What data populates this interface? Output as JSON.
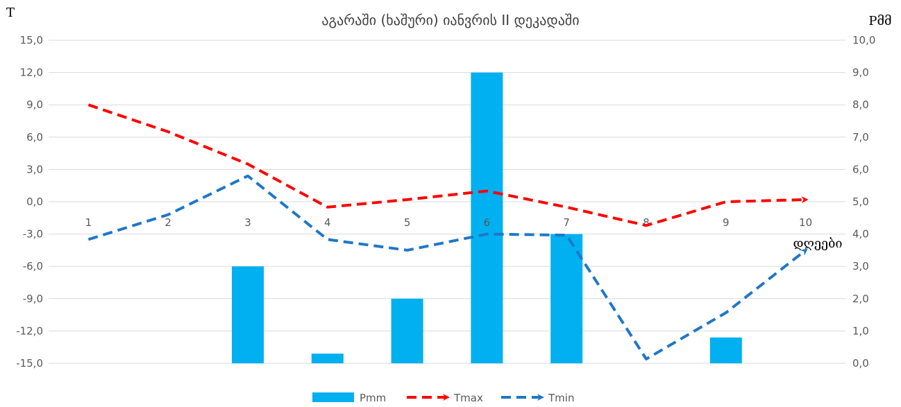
{
  "chart_data": {
    "type": "bar-line-combo",
    "title_line1": "",
    "title_line2": "აგარაში (ხაშური) იანვრის II დეკადაში",
    "y_left_label": "T",
    "y_right_label": "Pმმ",
    "x_label": "დღეები",
    "y_left_lim": [
      -15,
      15
    ],
    "y_right_lim": [
      0,
      10
    ],
    "y_left_ticks": [
      "15,0",
      "12,0",
      "9,0",
      "6,0",
      "3,0",
      "0,0",
      "-3,0",
      "-6,0",
      "-9,0",
      "-12,0",
      "-15,0"
    ],
    "y_right_ticks": [
      "10,0",
      "9,0",
      "8,0",
      "7,0",
      "6,0",
      "5,0",
      "4,0",
      "3,0",
      "2,0",
      "1,0",
      "0,0"
    ],
    "categories": [
      "1",
      "2",
      "3",
      "4",
      "5",
      "6",
      "7",
      "8",
      "9",
      "10"
    ],
    "grid": true,
    "legend_position": "bottom",
    "series": [
      {
        "name": "Pmm",
        "kind": "bar",
        "axis": "right",
        "color": "#00B0F0",
        "values": [
          0,
          0,
          3.0,
          0.3,
          2.0,
          9.0,
          4.0,
          0,
          0.8,
          0
        ]
      },
      {
        "name": "Tmax",
        "kind": "line",
        "axis": "left",
        "color": "#FF0000",
        "values": [
          9.0,
          6.5,
          3.5,
          -0.5,
          0.2,
          1.0,
          -0.5,
          -2.2,
          0.0,
          0.2
        ]
      },
      {
        "name": "Tmin",
        "kind": "line",
        "axis": "left",
        "color": "#1F77C8",
        "values": [
          -3.5,
          -1.2,
          2.4,
          -3.5,
          -4.5,
          -3.0,
          -3.1,
          -14.6,
          -10.3,
          -4.5
        ]
      }
    ]
  }
}
